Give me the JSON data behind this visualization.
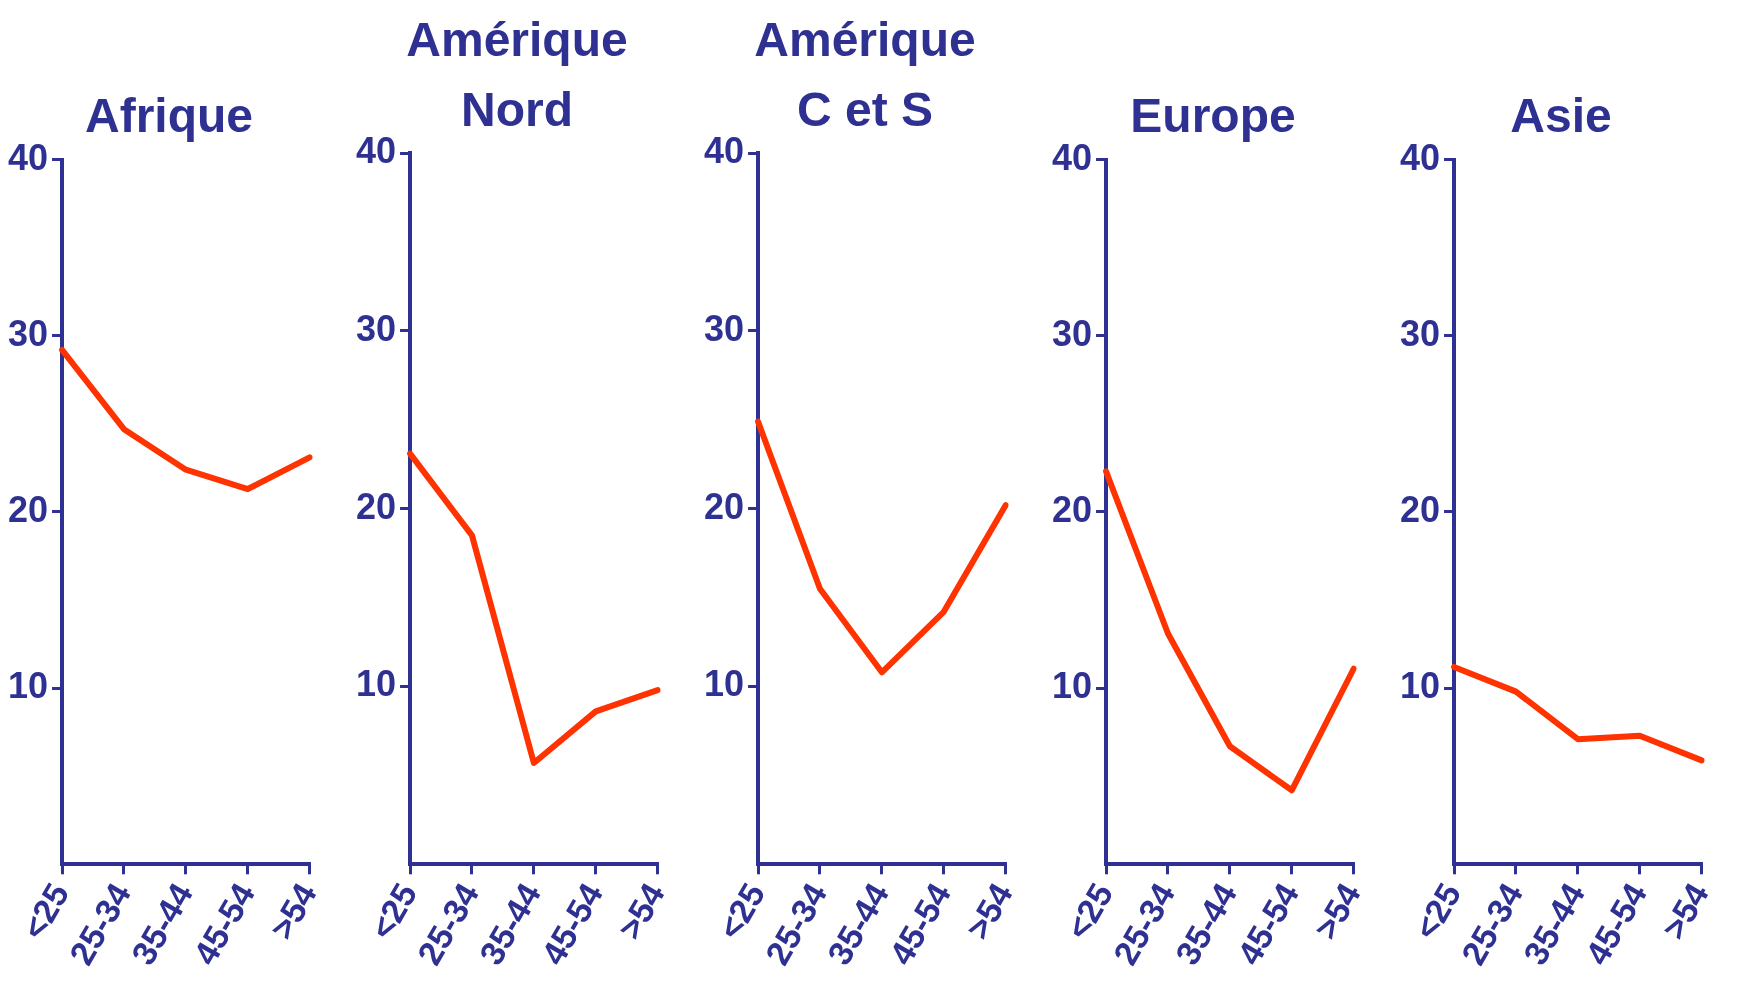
{
  "chart_data": [
    {
      "type": "line",
      "title": "Afrique",
      "categories": [
        "<25",
        "25-34",
        "35-44",
        "45-54",
        ">54"
      ],
      "series": [
        {
          "color": "#ff3300",
          "values": [
            29.2,
            24.7,
            22.4,
            21.3,
            23.1
          ]
        }
      ],
      "ylim": [
        0,
        40
      ],
      "yticks": [
        10,
        20,
        30,
        40
      ],
      "marker": "none",
      "legend": false
    },
    {
      "type": "line",
      "title": "Amérique\nNord",
      "categories": [
        "<25",
        "25-34",
        "35-44",
        "45-54",
        ">54"
      ],
      "series": [
        {
          "color": "#ff3300",
          "values": [
            23.1,
            18.5,
            5.7,
            8.6,
            9.8
          ]
        }
      ],
      "ylim": [
        0,
        40
      ],
      "yticks": [
        10,
        20,
        30,
        40
      ],
      "marker": "none",
      "legend": false
    },
    {
      "type": "line",
      "title": "Amérique\nC et S",
      "categories": [
        "<25",
        "25-34",
        "35-44",
        "45-54",
        ">54"
      ],
      "series": [
        {
          "color": "#ff3300",
          "values": [
            24.9,
            15.5,
            10.8,
            14.2,
            20.2
          ]
        }
      ],
      "ylim": [
        0,
        40
      ],
      "yticks": [
        10,
        20,
        30,
        40
      ],
      "marker": "none",
      "legend": false
    },
    {
      "type": "line",
      "title": "Europe",
      "categories": [
        "<25",
        "25-34",
        "35-44",
        "45-54",
        ">54"
      ],
      "series": [
        {
          "color": "#ff3300",
          "values": [
            22.3,
            13.1,
            6.7,
            4.2,
            11.1
          ]
        }
      ],
      "ylim": [
        0,
        40
      ],
      "yticks": [
        10,
        20,
        30,
        40
      ],
      "marker": "none",
      "legend": false
    },
    {
      "type": "line",
      "title": "Asie",
      "categories": [
        "<25",
        "25-34",
        "35-44",
        "45-54",
        ">54"
      ],
      "series": [
        {
          "color": "#ff3300",
          "values": [
            11.2,
            9.8,
            7.1,
            7.3,
            5.9
          ]
        }
      ],
      "ylim": [
        0,
        40
      ],
      "yticks": [
        10,
        20,
        30,
        40
      ],
      "marker": "none",
      "legend": false
    }
  ]
}
